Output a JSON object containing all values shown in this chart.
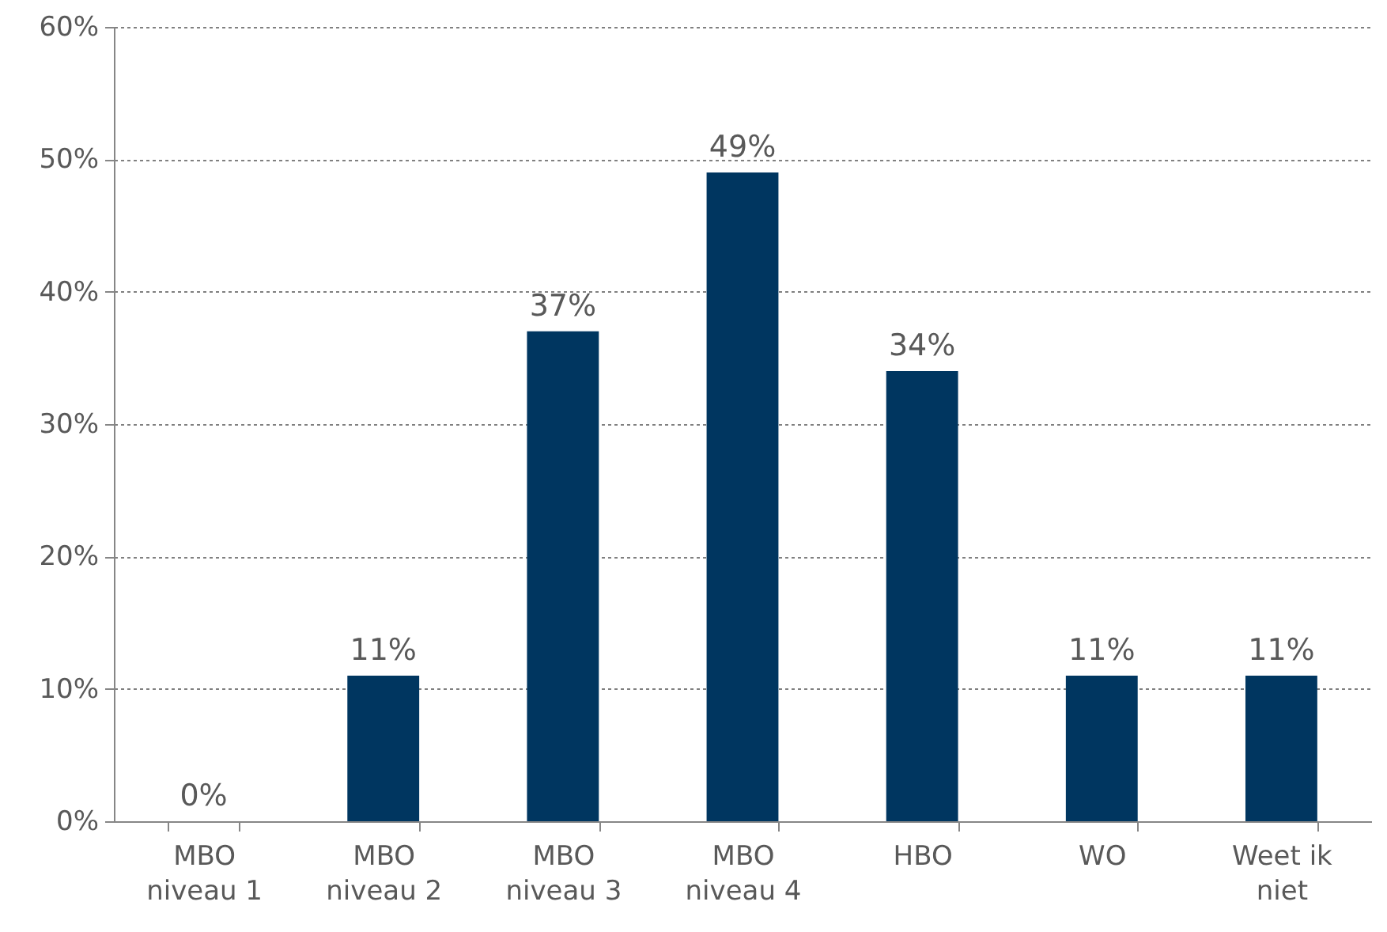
{
  "chart_data": {
    "type": "bar",
    "categories": [
      "MBO niveau 1",
      "MBO niveau 2",
      "MBO niveau 3",
      "MBO niveau 4",
      "HBO",
      "WO",
      "Weet ik niet"
    ],
    "values": [
      0,
      11,
      37,
      49,
      34,
      11,
      11
    ],
    "value_labels": [
      "0%",
      "11%",
      "37%",
      "49%",
      "34%",
      "11%",
      "11%"
    ],
    "color": "#003660",
    "ylim": [
      0,
      60
    ],
    "yticks": [
      {
        "value": 0,
        "label": "0%"
      },
      {
        "value": 10,
        "label": "10%"
      },
      {
        "value": 20,
        "label": "20%"
      },
      {
        "value": 30,
        "label": "30%"
      },
      {
        "value": 40,
        "label": "40%"
      },
      {
        "value": 50,
        "label": "50%"
      },
      {
        "value": 60,
        "label": "60%"
      }
    ],
    "grid": "y"
  }
}
